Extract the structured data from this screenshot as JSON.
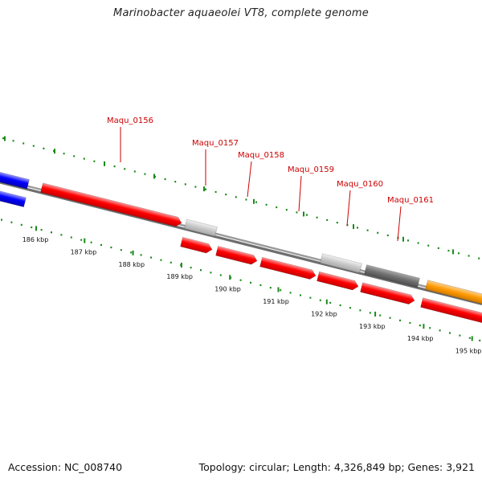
{
  "title": "Marinobacter aquaeolei VT8, complete genome",
  "footer": {
    "accession": "Accession: NC_008740",
    "summary": "Topology: circular; Length: 4,326,849 bp; Genes: 3,921"
  },
  "colors": {
    "backbone": "#808080",
    "ticks": "#1a8a1a",
    "label": "#cc0000",
    "gene_red": "#ff0000",
    "gene_blue": "#0000ff",
    "gene_lightgray": "#c8c8c8",
    "gene_darkgray": "#707070",
    "gene_orange": "#ff9900"
  },
  "scale_labels": [
    "186 kbp",
    "187 kbp",
    "188 kbp",
    "189 kbp",
    "190 kbp",
    "191 kbp",
    "192 kbp",
    "193 kbp",
    "194 kbp",
    "195 kbp"
  ],
  "gene_labels": [
    "Maqu_0156",
    "Maqu_0157",
    "Maqu_0158",
    "Maqu_0159",
    "Maqu_0160",
    "Maqu_0161"
  ]
}
